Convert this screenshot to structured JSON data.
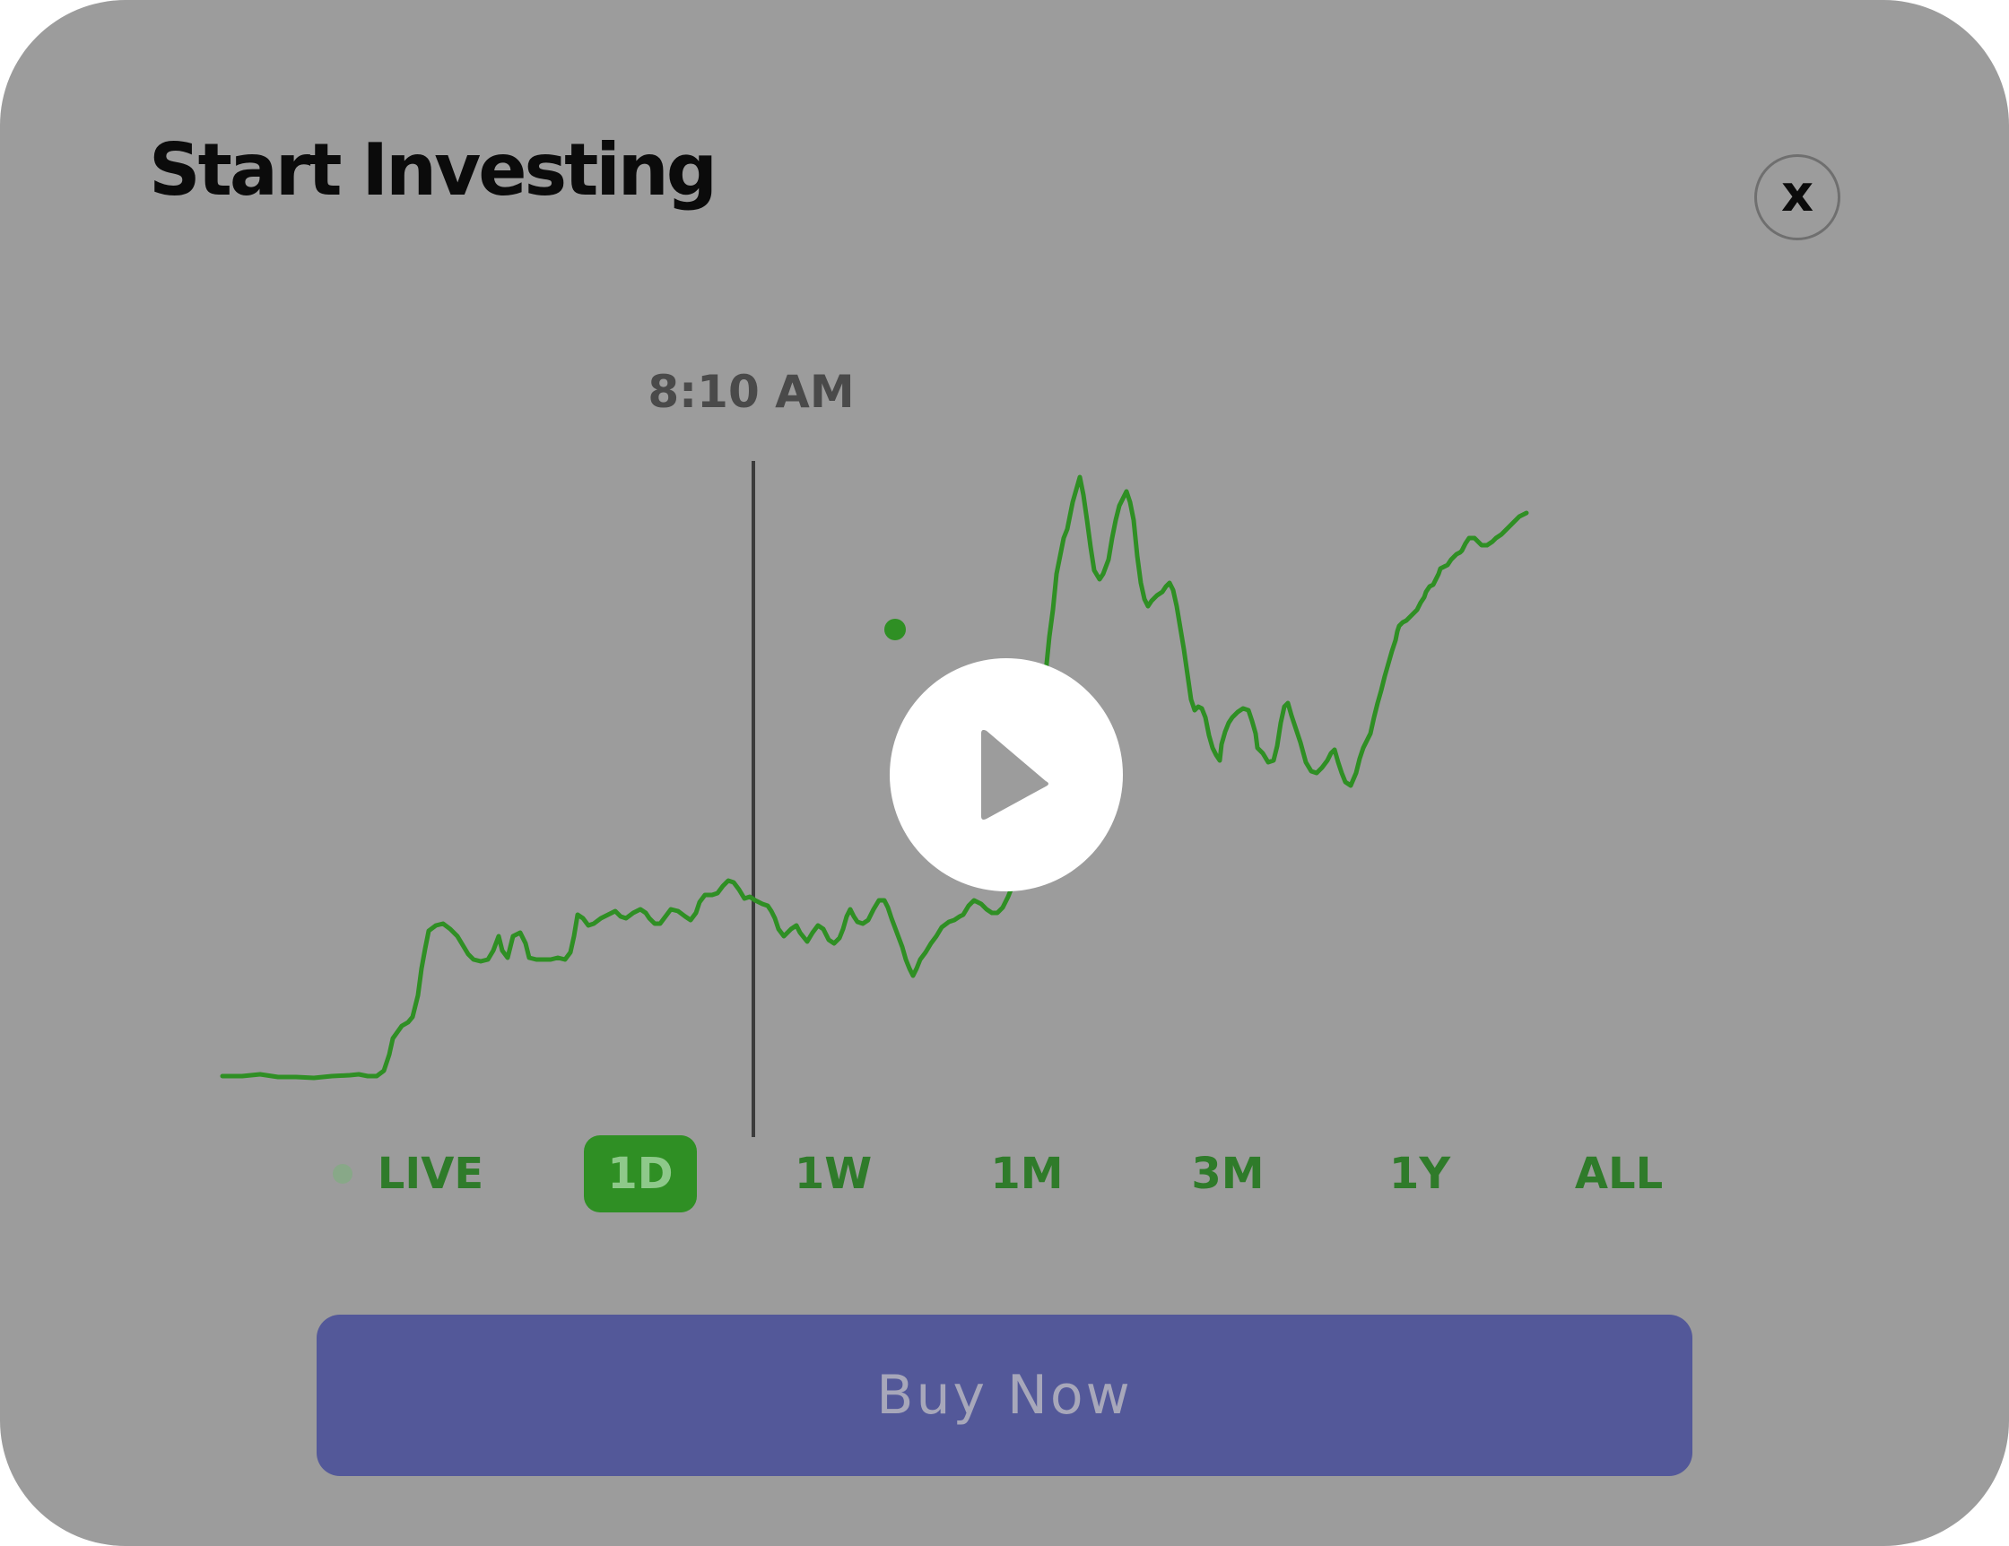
{
  "modal": {
    "title": "Start Investing",
    "close_label": "x"
  },
  "chart": {
    "hover_time": "8:10 AM",
    "line_color": "#2f8f24",
    "cursor_color": "#3c3c3c"
  },
  "play_button": {
    "icon": "play-icon"
  },
  "ranges": [
    {
      "label": "LIVE",
      "active": false,
      "has_dot": true
    },
    {
      "label": "1D",
      "active": true
    },
    {
      "label": "1W",
      "active": false
    },
    {
      "label": "1M",
      "active": false
    },
    {
      "label": "3M",
      "active": false
    },
    {
      "label": "1Y",
      "active": false
    },
    {
      "label": "ALL",
      "active": false
    }
  ],
  "buy_button": {
    "label": "Buy Now",
    "color": "#535899"
  }
}
